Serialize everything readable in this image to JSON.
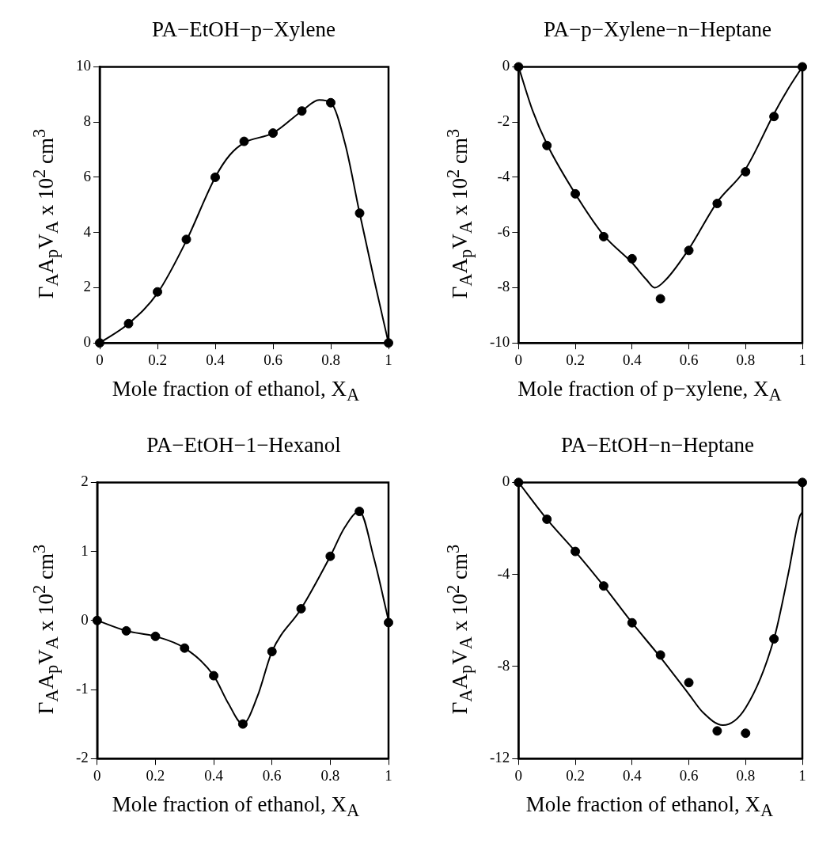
{
  "chart_data": [
    {
      "type": "scatter",
      "title": "PA−EtOH−p−Xylene",
      "xlabel": "Mole fraction of ethanol, X$_{A}$",
      "ylabel": "Γ$_{A}$A$_{p}$V$_{A}$ x 10$^{2}$ cm$^{3}$",
      "x": [
        0,
        0.1,
        0.2,
        0.3,
        0.4,
        0.5,
        0.6,
        0.7,
        0.8,
        0.9,
        1
      ],
      "grid": false,
      "xlim": [
        0,
        1
      ],
      "ylim": [
        0,
        10
      ],
      "xticks": [
        0,
        0.2,
        0.4,
        0.6,
        0.8,
        1
      ],
      "yticks": [
        0,
        2,
        4,
        6,
        8,
        10
      ],
      "series": [
        {
          "color": "#000000",
          "marker": "circle",
          "values": [
            0,
            0.7,
            1.85,
            3.75,
            6.0,
            7.3,
            7.6,
            8.4,
            8.7,
            4.7,
            0
          ]
        },
        {
          "type": "line",
          "color": "#000000",
          "x": [
            0,
            0.1,
            0.2,
            0.3,
            0.4,
            0.45,
            0.5,
            0.6,
            0.7,
            0.76,
            0.8,
            0.85,
            0.9,
            0.95,
            1
          ],
          "values": [
            0,
            0.7,
            1.8,
            3.7,
            6.0,
            6.8,
            7.25,
            7.6,
            8.4,
            8.8,
            8.7,
            7.2,
            4.7,
            2.3,
            0
          ]
        }
      ]
    },
    {
      "type": "scatter",
      "title": "PA−p−Xylene−n−Heptane",
      "xlabel": "Mole fraction of p−xylene, X$_{A}$",
      "ylabel": "Γ$_{A}$A$_{p}$V$_{A}$ x 10$^{2}$ cm$^{3}$",
      "x": [
        0,
        0.1,
        0.2,
        0.3,
        0.4,
        0.5,
        0.6,
        0.7,
        0.8,
        0.9,
        1
      ],
      "grid": false,
      "xlim": [
        0,
        1
      ],
      "ylim": [
        -10,
        0
      ],
      "xticks": [
        0,
        0.2,
        0.4,
        0.6,
        0.8,
        1
      ],
      "yticks": [
        -10,
        -8,
        -6,
        -4,
        -2,
        0
      ],
      "series": [
        {
          "color": "#000000",
          "marker": "circle",
          "values": [
            0,
            -2.85,
            -4.6,
            -6.15,
            -6.95,
            -8.4,
            -6.65,
            -4.95,
            -3.8,
            -1.8,
            0
          ]
        },
        {
          "type": "line",
          "color": "#000000",
          "x": [
            0,
            0.05,
            0.1,
            0.2,
            0.3,
            0.4,
            0.45,
            0.48,
            0.52,
            0.6,
            0.7,
            0.8,
            0.9,
            0.95,
            1
          ],
          "values": [
            0,
            -1.6,
            -2.8,
            -4.6,
            -6.1,
            -7.1,
            -7.7,
            -8.0,
            -7.7,
            -6.6,
            -4.9,
            -3.7,
            -1.7,
            -0.8,
            0
          ]
        }
      ]
    },
    {
      "type": "scatter",
      "title": "PA−EtOH−1−Hexanol",
      "xlabel": "Mole fraction of ethanol, X$_{A}$",
      "ylabel": "Γ$_{A}$A$_{p}$V$_{A}$ x 10$^{2}$ cm$^{3}$",
      "x": [
        0,
        0.1,
        0.2,
        0.3,
        0.4,
        0.5,
        0.6,
        0.7,
        0.8,
        0.9,
        1
      ],
      "grid": false,
      "xlim": [
        0,
        1
      ],
      "ylim": [
        -2,
        2
      ],
      "xticks": [
        0,
        0.2,
        0.4,
        0.6,
        0.8,
        1
      ],
      "yticks": [
        -2,
        -1,
        0,
        1,
        2
      ],
      "series": [
        {
          "color": "#000000",
          "marker": "circle",
          "values": [
            0,
            -0.15,
            -0.23,
            -0.4,
            -0.8,
            -1.5,
            -0.45,
            0.17,
            0.93,
            1.58,
            -0.03
          ]
        },
        {
          "type": "line",
          "color": "#000000",
          "x": [
            0,
            0.1,
            0.2,
            0.3,
            0.4,
            0.45,
            0.5,
            0.55,
            0.6,
            0.7,
            0.8,
            0.85,
            0.9,
            0.95,
            1
          ],
          "values": [
            0,
            -0.15,
            -0.23,
            -0.4,
            -0.8,
            -1.2,
            -1.5,
            -1.1,
            -0.45,
            0.17,
            0.93,
            1.35,
            1.58,
            0.9,
            0
          ]
        }
      ]
    },
    {
      "type": "scatter",
      "title": "PA−EtOH−n−Heptane",
      "xlabel": "Mole fraction of ethanol, X$_{A}$",
      "ylabel": "Γ$_{A}$A$_{p}$V$_{A}$ x 10$^{2}$ cm$^{3}$",
      "x": [
        0,
        0.1,
        0.2,
        0.3,
        0.4,
        0.5,
        0.6,
        0.7,
        0.8,
        0.9,
        1
      ],
      "grid": false,
      "xlim": [
        0,
        1
      ],
      "ylim": [
        -12,
        0
      ],
      "xticks": [
        0,
        0.2,
        0.4,
        0.6,
        0.8,
        1
      ],
      "yticks": [
        -12,
        -8,
        -4,
        0
      ],
      "series": [
        {
          "color": "#000000",
          "marker": "circle",
          "values": [
            0,
            -1.6,
            -3.0,
            -4.5,
            -6.1,
            -7.5,
            -8.7,
            -10.8,
            -10.9,
            -6.8,
            0
          ]
        },
        {
          "type": "line",
          "color": "#000000",
          "x": [
            0,
            0.1,
            0.2,
            0.3,
            0.4,
            0.5,
            0.6,
            0.65,
            0.72,
            0.8,
            0.9,
            0.95,
            0.99,
            1
          ],
          "values": [
            0,
            -1.6,
            -3.0,
            -4.5,
            -6.1,
            -7.6,
            -9.2,
            -10.0,
            -10.55,
            -9.8,
            -6.8,
            -4.0,
            -1.5,
            -1.3
          ]
        }
      ]
    }
  ]
}
